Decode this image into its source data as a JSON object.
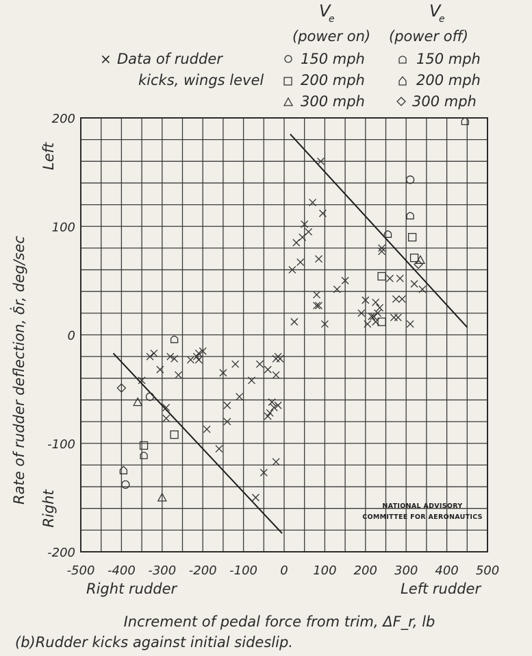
{
  "chart_data": {
    "type": "scatter",
    "xlabel": "Increment of pedal force from trim, ΔF_r, lb",
    "ylabel": "Rate of rudder deflection, δ̇r, deg/sec",
    "caption": "(b)Rudder kicks against initial sideslip.",
    "xlim": [
      -500,
      500
    ],
    "ylim": [
      -200,
      200
    ],
    "x_ticks": [
      -500,
      -400,
      -300,
      -200,
      -100,
      0,
      100,
      200,
      300,
      400,
      500
    ],
    "y_ticks": [
      -200,
      -100,
      0,
      100,
      200
    ],
    "x_direction_labels": {
      "left": "Right rudder",
      "right": "Left rudder"
    },
    "y_direction_labels": {
      "top": "Left",
      "bottom": "Right"
    },
    "grid": true,
    "legend": {
      "placement": "top",
      "column_headers": [
        {
          "main": "V",
          "sub": "e",
          "note": "(power on)"
        },
        {
          "main": "V",
          "sub": "e",
          "note": "(power off)"
        }
      ],
      "x_entry": {
        "symbol": "×",
        "line1": "Data of rudder",
        "line2": "kicks, wings level"
      },
      "power_on": [
        {
          "symbol": "○",
          "label": "150 mph"
        },
        {
          "symbol": "□",
          "label": "200 mph"
        },
        {
          "symbol": "△",
          "label": "300 mph"
        }
      ],
      "power_off": [
        {
          "symbol": "⌂",
          "label": "150 mph"
        },
        {
          "symbol": "⌓",
          "label": "200 mph"
        },
        {
          "symbol": "◇",
          "label": "300 mph"
        }
      ]
    },
    "annotation": [
      "NATIONAL ADVISORY",
      "COMMITTEE FOR AERONAUTICS"
    ],
    "series": [
      {
        "name": "Data of rudder kicks, wings level",
        "marker": "x",
        "points": [
          [
            -350,
            -42
          ],
          [
            -320,
            -17
          ],
          [
            -330,
            -20
          ],
          [
            -305,
            -32
          ],
          [
            -280,
            -20
          ],
          [
            -270,
            -22
          ],
          [
            -260,
            -37
          ],
          [
            -290,
            -67
          ],
          [
            -290,
            -77
          ],
          [
            -230,
            -23
          ],
          [
            -215,
            -20
          ],
          [
            -210,
            -17
          ],
          [
            -200,
            -15
          ],
          [
            -210,
            -23
          ],
          [
            -190,
            -87
          ],
          [
            -160,
            -105
          ],
          [
            -150,
            -35
          ],
          [
            -140,
            -65
          ],
          [
            -140,
            -80
          ],
          [
            -120,
            -27
          ],
          [
            -110,
            -57
          ],
          [
            -80,
            -42
          ],
          [
            -60,
            -27
          ],
          [
            -40,
            -32
          ],
          [
            -35,
            -72
          ],
          [
            -30,
            -62
          ],
          [
            -25,
            -67
          ],
          [
            -20,
            -37
          ],
          [
            -20,
            -22
          ],
          [
            -15,
            -20
          ],
          [
            -10,
            -22
          ],
          [
            -50,
            -127
          ],
          [
            -70,
            -150
          ],
          [
            -20,
            -117
          ],
          [
            -40,
            -75
          ],
          [
            -15,
            -65
          ],
          [
            20,
            60
          ],
          [
            30,
            85
          ],
          [
            40,
            67
          ],
          [
            45,
            90
          ],
          [
            50,
            102
          ],
          [
            60,
            95
          ],
          [
            70,
            122
          ],
          [
            80,
            27
          ],
          [
            80,
            37
          ],
          [
            85,
            27
          ],
          [
            85,
            70
          ],
          [
            90,
            160
          ],
          [
            95,
            112
          ],
          [
            100,
            10
          ],
          [
            130,
            42
          ],
          [
            150,
            50
          ],
          [
            190,
            20
          ],
          [
            200,
            32
          ],
          [
            205,
            10
          ],
          [
            215,
            17
          ],
          [
            220,
            17
          ],
          [
            225,
            30
          ],
          [
            225,
            12
          ],
          [
            230,
            20
          ],
          [
            235,
            25
          ],
          [
            240,
            77
          ],
          [
            240,
            80
          ],
          [
            260,
            52
          ],
          [
            270,
            16
          ],
          [
            275,
            33
          ],
          [
            280,
            16
          ],
          [
            285,
            52
          ],
          [
            290,
            33
          ],
          [
            310,
            10
          ],
          [
            320,
            47
          ],
          [
            340,
            42
          ],
          [
            25,
            12
          ]
        ]
      },
      {
        "name": "Power on 150 mph",
        "marker": "circle",
        "points": [
          [
            -390,
            -138
          ],
          [
            -330,
            -57
          ],
          [
            310,
            143
          ]
        ]
      },
      {
        "name": "Power on 200 mph",
        "marker": "square",
        "points": [
          [
            -270,
            -92
          ],
          [
            -345,
            -102
          ],
          [
            315,
            90
          ],
          [
            320,
            71
          ],
          [
            240,
            54
          ],
          [
            240,
            12
          ]
        ]
      },
      {
        "name": "Power on 300 mph",
        "marker": "triangle",
        "points": [
          [
            -360,
            -62
          ],
          [
            -300,
            -150
          ],
          [
            335,
            69
          ]
        ]
      },
      {
        "name": "Power off 150 mph",
        "marker": "house",
        "points": [
          [
            -270,
            -4
          ],
          [
            -345,
            -111
          ],
          [
            255,
            93
          ],
          [
            310,
            110
          ],
          [
            445,
            197
          ]
        ]
      },
      {
        "name": "Power off 200 mph",
        "marker": "dome",
        "points": [
          [
            -395,
            -125
          ]
        ]
      },
      {
        "name": "Power off 300 mph",
        "marker": "diamond",
        "points": [
          [
            -400,
            -49
          ],
          [
            330,
            65
          ]
        ]
      }
    ],
    "lines": [
      {
        "from": [
          -420,
          -17
        ],
        "to": [
          -5,
          -183
        ]
      },
      {
        "from": [
          15,
          185
        ],
        "to": [
          450,
          7
        ]
      }
    ]
  }
}
